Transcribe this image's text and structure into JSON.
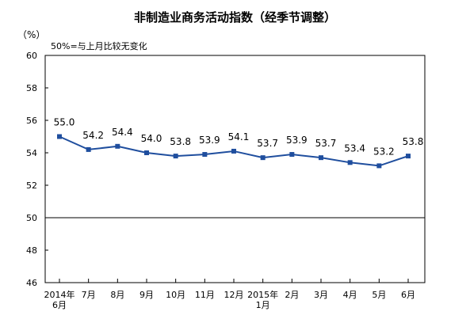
{
  "chart_data": {
    "type": "line",
    "title": "非制造业商务活动指数（经季节调整）",
    "ylabel": "（%）",
    "annotation": "50%=与上月比较无变化",
    "x": [
      [
        "2014年",
        "6月"
      ],
      [
        "7月"
      ],
      [
        "8月"
      ],
      [
        "9月"
      ],
      [
        "10月"
      ],
      [
        "11月"
      ],
      [
        "12月"
      ],
      [
        "2015年",
        "1月"
      ],
      [
        "2月"
      ],
      [
        "3月"
      ],
      [
        "4月"
      ],
      [
        "5月"
      ],
      [
        "6月"
      ]
    ],
    "series": [
      {
        "values": [
          55.0,
          54.2,
          54.4,
          54.0,
          53.8,
          53.9,
          54.1,
          53.7,
          53.9,
          53.7,
          53.4,
          53.2,
          53.8
        ],
        "labels": [
          "55.0",
          "54.2",
          "54.4",
          "54.0",
          "53.8",
          "53.9",
          "54.1",
          "53.7",
          "53.9",
          "53.7",
          "53.4",
          "53.2",
          "53.8"
        ],
        "color": "#1f4e9e"
      }
    ],
    "ylim": [
      46,
      60
    ],
    "yticks": [
      "46",
      "48",
      "50",
      "52",
      "54",
      "56",
      "58",
      "60"
    ],
    "reference_line": 50,
    "grid": false
  }
}
